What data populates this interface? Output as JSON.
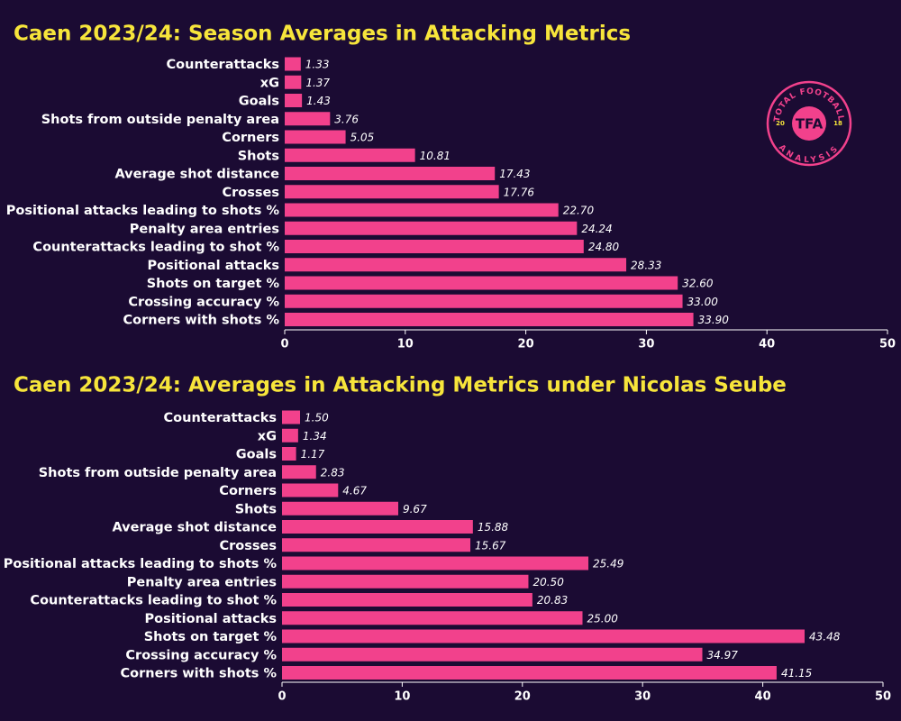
{
  "chart_data": [
    {
      "type": "barh",
      "title": "Caen 2023/24: Season Averages in Attacking Metrics",
      "categories": [
        "Counterattacks",
        "xG",
        "Goals",
        "Shots from outside penalty area",
        "Corners",
        "Shots",
        "Average shot distance",
        "Crosses",
        "Positional attacks leading to shots %",
        "Penalty area entries",
        "Counterattacks leading to shot %",
        "Positional attacks",
        "Shots on target %",
        "Crossing accuracy %",
        "Corners with shots %"
      ],
      "values": [
        1.33,
        1.37,
        1.43,
        3.76,
        5.05,
        10.81,
        17.43,
        17.76,
        22.7,
        24.24,
        24.8,
        28.33,
        32.6,
        33.0,
        33.9
      ],
      "value_labels": [
        "1.33",
        "1.37",
        "1.43",
        "3.76",
        "5.05",
        "10.81",
        "17.43",
        "17.76",
        "22.70",
        "24.24",
        "24.80",
        "28.33",
        "32.60",
        "33.00",
        "33.90"
      ],
      "color": "#f2418c",
      "xlim": [
        0,
        50
      ],
      "xticks": [
        0,
        10,
        20,
        30,
        40,
        50
      ]
    },
    {
      "type": "barh",
      "title": "Caen 2023/24: Averages in Attacking Metrics under Nicolas Seube",
      "categories": [
        "Counterattacks",
        "xG",
        "Goals",
        "Shots from outside penalty area",
        "Corners",
        "Shots",
        "Average shot distance",
        "Crosses",
        "Positional attacks leading to shots %",
        "Penalty area entries",
        "Counterattacks leading to shot %",
        "Positional attacks",
        "Shots on target %",
        "Crossing accuracy %",
        "Corners with shots %"
      ],
      "values": [
        1.5,
        1.34,
        1.17,
        2.83,
        4.67,
        9.67,
        15.88,
        15.67,
        25.49,
        20.5,
        20.83,
        25.0,
        43.48,
        34.97,
        41.15
      ],
      "value_labels": [
        "1.50",
        "1.34",
        "1.17",
        "2.83",
        "4.67",
        "9.67",
        "15.88",
        "15.67",
        "25.49",
        "20.50",
        "20.83",
        "25.00",
        "43.48",
        "34.97",
        "41.15"
      ],
      "color": "#f2418c",
      "xlim": [
        0,
        50
      ],
      "xticks": [
        0,
        10,
        20,
        30,
        40,
        50
      ]
    }
  ],
  "logo": {
    "top": "TOTAL FOOTBALL",
    "bottom": "ANALYSIS",
    "center": "TFA",
    "left": "20",
    "right": "18"
  }
}
